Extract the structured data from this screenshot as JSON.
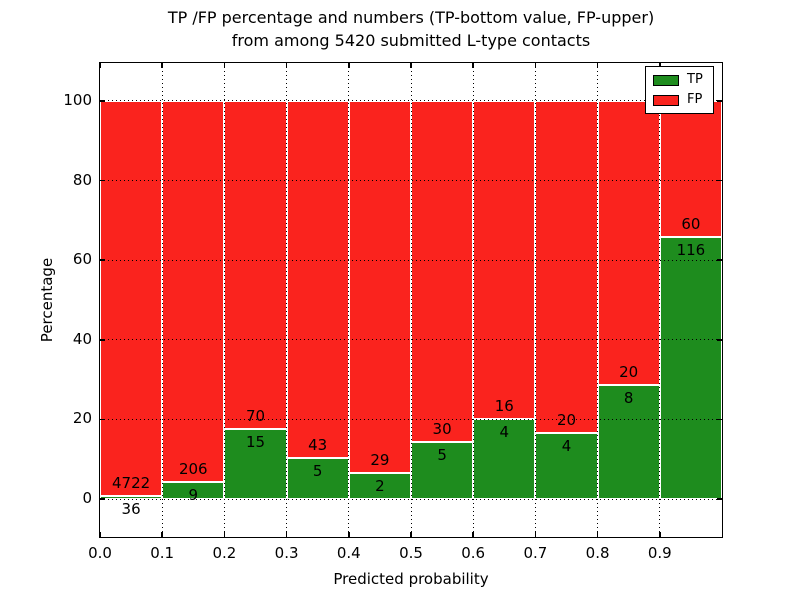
{
  "title": {
    "line1": "TP /FP percentage and numbers (TP-bottom value, FP-upper)",
    "line2": "from among 5420 submitted L-type contacts"
  },
  "axes": {
    "xlabel": "Predicted probability",
    "ylabel": "Percentage",
    "x_tick_labels": [
      "0.0",
      "0.1",
      "0.2",
      "0.3",
      "0.4",
      "0.5",
      "0.6",
      "0.7",
      "0.8",
      "0.9"
    ],
    "y_tick_labels": [
      "0",
      "20",
      "40",
      "60",
      "80",
      "100"
    ],
    "y_tick_values": [
      0,
      20,
      40,
      60,
      80,
      100
    ]
  },
  "legend": {
    "entries": [
      {
        "label": "TP",
        "color": "#1e8c1e"
      },
      {
        "label": "FP",
        "color": "#fa231e"
      }
    ]
  },
  "chart_data": {
    "type": "bar",
    "stacked": true,
    "normalization": "each bin stacked to 100 percent",
    "title": "TP /FP percentage and numbers (TP-bottom value, FP-upper) from among 5420 submitted L-type contacts",
    "xlabel": "Predicted probability",
    "ylabel": "Percentage",
    "total_contacts": 5420,
    "bin_starts": [
      0.0,
      0.1,
      0.2,
      0.3,
      0.4,
      0.5,
      0.6,
      0.7,
      0.8,
      0.9
    ],
    "bin_width": 0.1,
    "series": [
      {
        "name": "TP",
        "color": "#1e8c1e",
        "counts": [
          36,
          9,
          15,
          5,
          2,
          5,
          4,
          4,
          8,
          116
        ]
      },
      {
        "name": "FP",
        "color": "#fa231e",
        "counts": [
          4722,
          206,
          70,
          43,
          29,
          30,
          16,
          20,
          20,
          60
        ]
      }
    ],
    "tp_percent_per_bin": [
      0.76,
      4.19,
      17.65,
      10.42,
      6.45,
      14.29,
      20.0,
      16.67,
      28.57,
      65.91
    ],
    "xlim": [
      0.0,
      1.0
    ],
    "ylim_ticks": [
      0,
      100
    ],
    "grid": "dotted both axes",
    "legend_position": "upper right"
  }
}
